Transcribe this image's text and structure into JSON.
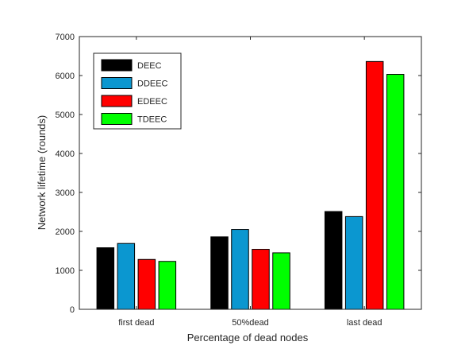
{
  "chart_data": {
    "type": "bar",
    "title": "",
    "xlabel": "Percentage of dead nodes",
    "ylabel": "Network lifetime (rounds)",
    "categories": [
      "first dead",
      "50%dead",
      "last dead"
    ],
    "ylim": [
      0,
      7000
    ],
    "yticks": [
      0,
      1000,
      2000,
      3000,
      4000,
      5000,
      6000,
      7000
    ],
    "grid": false,
    "legend_position": "top-left",
    "series": [
      {
        "name": "DEEC",
        "color": "#000000",
        "values": [
          1580,
          1860,
          2510
        ]
      },
      {
        "name": "DDEEC",
        "color": "#0b97d0",
        "values": [
          1690,
          2050,
          2380
        ]
      },
      {
        "name": "EDEEC",
        "color": "#ff0000",
        "values": [
          1280,
          1540,
          6360
        ]
      },
      {
        "name": "TDEEC",
        "color": "#00ff00",
        "values": [
          1230,
          1450,
          6030
        ]
      }
    ]
  }
}
